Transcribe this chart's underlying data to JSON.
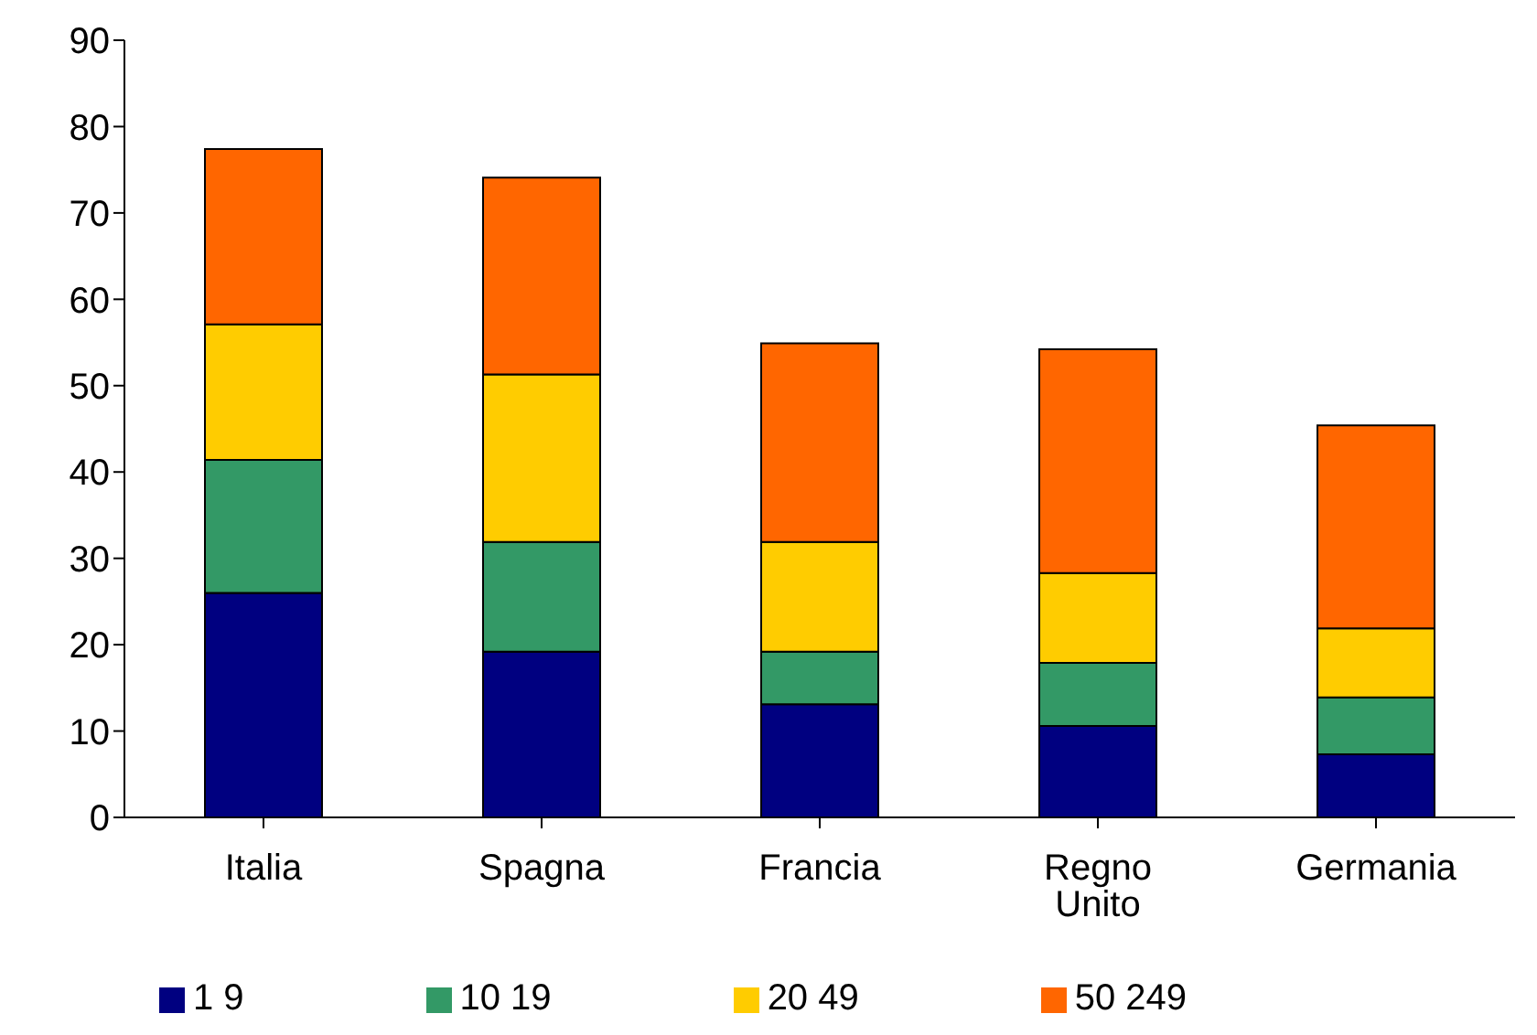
{
  "chart_data": {
    "type": "bar",
    "stacked": true,
    "categories": [
      "Italia",
      "Spagna",
      "Francia",
      "Regno Unito",
      "Germania"
    ],
    "series": [
      {
        "name": "1 9",
        "color": "#000080",
        "values": [
          26,
          19.2,
          13.1,
          10.6,
          7.3
        ]
      },
      {
        "name": "10 19",
        "color": "#339966",
        "values": [
          15.4,
          12.7,
          6.1,
          7.3,
          6.6
        ]
      },
      {
        "name": "20 49",
        "color": "#ffcc00",
        "values": [
          15.7,
          19.4,
          12.7,
          10.4,
          8
        ]
      },
      {
        "name": "50 249",
        "color": "#ff6600",
        "values": [
          20.3,
          22.8,
          23,
          25.9,
          23.5
        ]
      }
    ],
    "ylim": [
      0,
      90
    ],
    "yticks": [
      0,
      10,
      20,
      30,
      40,
      50,
      60,
      70,
      80,
      90
    ],
    "grid": false,
    "legend": "bottom"
  }
}
